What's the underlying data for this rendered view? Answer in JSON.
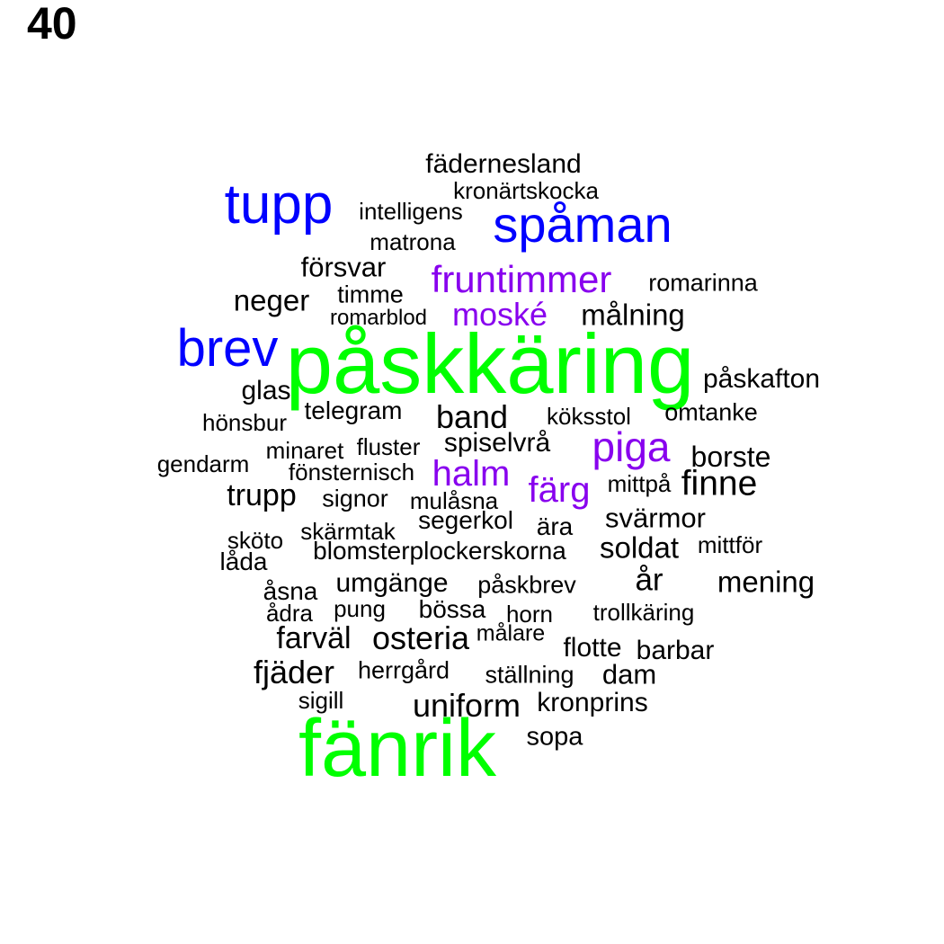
{
  "page_number": "40",
  "colors": {
    "black": "#000000",
    "blue": "#0000ff",
    "green": "#00ff00",
    "purple": "#8800ee"
  },
  "words": [
    {
      "text": "fädernesland",
      "color": "black"
    },
    {
      "text": "kronärtskocka",
      "color": "black"
    },
    {
      "text": "tupp",
      "color": "blue"
    },
    {
      "text": "intelligens",
      "color": "black"
    },
    {
      "text": "spåman",
      "color": "blue"
    },
    {
      "text": "matrona",
      "color": "black"
    },
    {
      "text": "försvar",
      "color": "black"
    },
    {
      "text": "fruntimmer",
      "color": "purple"
    },
    {
      "text": "romarinna",
      "color": "black"
    },
    {
      "text": "neger",
      "color": "black"
    },
    {
      "text": "timme",
      "color": "black"
    },
    {
      "text": "romarblod",
      "color": "black"
    },
    {
      "text": "moské",
      "color": "purple"
    },
    {
      "text": "målning",
      "color": "black"
    },
    {
      "text": "brev",
      "color": "blue"
    },
    {
      "text": "påskkäring",
      "color": "green"
    },
    {
      "text": "påskafton",
      "color": "black"
    },
    {
      "text": "glas",
      "color": "black"
    },
    {
      "text": "telegram",
      "color": "black"
    },
    {
      "text": "band",
      "color": "black"
    },
    {
      "text": "köksstol",
      "color": "black"
    },
    {
      "text": "omtanke",
      "color": "black"
    },
    {
      "text": "hönsbur",
      "color": "black"
    },
    {
      "text": "spiselvrå",
      "color": "black"
    },
    {
      "text": "piga",
      "color": "purple"
    },
    {
      "text": "minaret",
      "color": "black"
    },
    {
      "text": "fluster",
      "color": "black"
    },
    {
      "text": "borste",
      "color": "black"
    },
    {
      "text": "gendarm",
      "color": "black"
    },
    {
      "text": "fönsternisch",
      "color": "black"
    },
    {
      "text": "halm",
      "color": "purple"
    },
    {
      "text": "färg",
      "color": "purple"
    },
    {
      "text": "mittpå",
      "color": "black"
    },
    {
      "text": "finne",
      "color": "black"
    },
    {
      "text": "trupp",
      "color": "black"
    },
    {
      "text": "signor",
      "color": "black"
    },
    {
      "text": "mulåsna",
      "color": "black"
    },
    {
      "text": "segerkol",
      "color": "black"
    },
    {
      "text": "svärmor",
      "color": "black"
    },
    {
      "text": "sköto",
      "color": "black"
    },
    {
      "text": "skärmtak",
      "color": "black"
    },
    {
      "text": "ära",
      "color": "black"
    },
    {
      "text": "mittför",
      "color": "black"
    },
    {
      "text": "blomsterplockerskorna",
      "color": "black"
    },
    {
      "text": "soldat",
      "color": "black"
    },
    {
      "text": "låda",
      "color": "black"
    },
    {
      "text": "år",
      "color": "black"
    },
    {
      "text": "umgänge",
      "color": "black"
    },
    {
      "text": "påskbrev",
      "color": "black"
    },
    {
      "text": "mening",
      "color": "black"
    },
    {
      "text": "åsna",
      "color": "black"
    },
    {
      "text": "pung",
      "color": "black"
    },
    {
      "text": "bössa",
      "color": "black"
    },
    {
      "text": "horn",
      "color": "black"
    },
    {
      "text": "trollkäring",
      "color": "black"
    },
    {
      "text": "ådra",
      "color": "black"
    },
    {
      "text": "farväl",
      "color": "black"
    },
    {
      "text": "osteria",
      "color": "black"
    },
    {
      "text": "målare",
      "color": "black"
    },
    {
      "text": "flotte",
      "color": "black"
    },
    {
      "text": "barbar",
      "color": "black"
    },
    {
      "text": "fjäder",
      "color": "black"
    },
    {
      "text": "herrgård",
      "color": "black"
    },
    {
      "text": "ställning",
      "color": "black"
    },
    {
      "text": "dam",
      "color": "black"
    },
    {
      "text": "sigill",
      "color": "black"
    },
    {
      "text": "uniform",
      "color": "black"
    },
    {
      "text": "kronprins",
      "color": "black"
    },
    {
      "text": "fänrik",
      "color": "green"
    },
    {
      "text": "sopa",
      "color": "black"
    }
  ]
}
